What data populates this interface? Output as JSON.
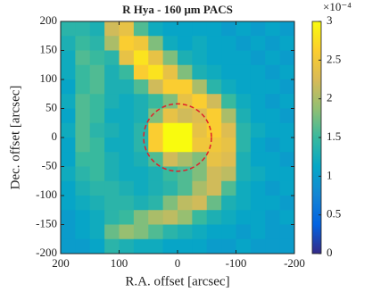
{
  "chart_data": {
    "type": "heatmap",
    "title": "R Hya - 160 μm PACS",
    "xlabel": "R.A. offset [arcsec]",
    "ylabel": "Dec. offset [arcsec]",
    "xlim": [
      200,
      -200
    ],
    "ylim": [
      -200,
      200
    ],
    "xticks": [
      200,
      100,
      0,
      -100,
      -200
    ],
    "yticks": [
      -200,
      -150,
      -100,
      -50,
      0,
      50,
      100,
      150,
      200
    ],
    "clim": [
      0,
      3
    ],
    "cticks": [
      0,
      0.5,
      1,
      1.5,
      2,
      2.5,
      3
    ],
    "colorbar_exponent": "×10⁻⁴",
    "colormap": [
      "#352a87",
      "#0363e1",
      "#1485d4",
      "#06a7c6",
      "#38b99e",
      "#92bf73",
      "#d9ba56",
      "#fcce2e",
      "#f9fb0e"
    ],
    "circle_center": [
      0,
      0
    ],
    "circle_radius": 58,
    "circle_color": "#e0202a",
    "x": [
      187.5,
      162.5,
      137.5,
      112.5,
      87.5,
      62.5,
      37.5,
      12.5,
      -12.5,
      -37.5,
      -62.5,
      -87.5,
      -112.5,
      -137.5,
      -162.5,
      -187.5
    ],
    "y": [
      187.5,
      162.5,
      137.5,
      112.5,
      87.5,
      62.5,
      37.5,
      12.5,
      -12.5,
      -37.5,
      -62.5,
      -87.5,
      -112.5,
      -137.5,
      -162.5,
      -187.5
    ],
    "z": [
      [
        1.4,
        1.4,
        1.3,
        2.2,
        2.4,
        1.6,
        1.2,
        1.1,
        1.1,
        1.1,
        1.1,
        1.0,
        1.1,
        1.0,
        1.1,
        1.0
      ],
      [
        1.3,
        1.5,
        1.4,
        2.0,
        2.6,
        2.5,
        1.8,
        1.2,
        1.1,
        1.2,
        1.1,
        1.1,
        1.0,
        1.1,
        1.0,
        1.1
      ],
      [
        1.2,
        1.6,
        1.5,
        1.4,
        2.4,
        2.8,
        2.4,
        1.8,
        1.3,
        1.2,
        1.1,
        1.1,
        1.1,
        1.0,
        1.1,
        1.0
      ],
      [
        1.2,
        1.5,
        1.6,
        1.3,
        1.5,
        2.6,
        2.8,
        2.4,
        1.8,
        1.3,
        1.2,
        1.1,
        1.1,
        1.1,
        1.0,
        1.1
      ],
      [
        1.1,
        1.5,
        1.6,
        1.3,
        1.3,
        1.6,
        2.2,
        2.6,
        2.6,
        2.0,
        1.4,
        1.2,
        1.1,
        1.1,
        1.1,
        1.0
      ],
      [
        1.2,
        1.6,
        1.5,
        1.3,
        1.2,
        1.3,
        1.5,
        1.8,
        2.4,
        2.6,
        2.2,
        1.5,
        1.2,
        1.1,
        1.0,
        1.1
      ],
      [
        1.1,
        1.6,
        1.5,
        1.2,
        1.2,
        1.3,
        1.8,
        2.4,
        2.2,
        2.3,
        2.6,
        2.0,
        1.3,
        1.1,
        1.1,
        1.0
      ],
      [
        1.2,
        1.6,
        1.4,
        1.3,
        1.2,
        1.4,
        2.6,
        3.0,
        3.0,
        2.4,
        2.6,
        2.3,
        1.4,
        1.2,
        1.1,
        1.1
      ],
      [
        1.1,
        1.6,
        1.5,
        1.2,
        1.2,
        1.4,
        2.6,
        3.0,
        3.0,
        2.5,
        2.5,
        2.4,
        1.4,
        1.1,
        1.0,
        1.1
      ],
      [
        1.1,
        1.5,
        1.5,
        1.3,
        1.2,
        1.3,
        1.6,
        2.2,
        2.0,
        1.8,
        2.4,
        2.3,
        1.3,
        1.1,
        1.1,
        1.0
      ],
      [
        1.2,
        1.4,
        1.5,
        1.3,
        1.2,
        1.2,
        1.3,
        1.5,
        1.6,
        1.8,
        2.2,
        2.1,
        1.3,
        1.2,
        1.1,
        1.1
      ],
      [
        1.1,
        1.3,
        1.4,
        1.4,
        1.3,
        1.2,
        1.3,
        1.4,
        1.6,
        2.0,
        2.2,
        1.6,
        1.2,
        1.1,
        1.0,
        1.1
      ],
      [
        1.1,
        1.2,
        1.3,
        1.4,
        1.4,
        1.3,
        1.4,
        1.8,
        2.1,
        2.2,
        1.7,
        1.3,
        1.2,
        1.1,
        1.1,
        1.0
      ],
      [
        1.0,
        1.1,
        1.2,
        1.4,
        1.5,
        1.8,
        2.0,
        2.1,
        1.9,
        1.5,
        1.3,
        1.2,
        1.1,
        1.1,
        1.0,
        1.1
      ],
      [
        1.0,
        1.1,
        1.2,
        1.7,
        1.9,
        1.8,
        1.6,
        1.4,
        1.3,
        1.2,
        1.1,
        1.1,
        1.0,
        1.1,
        1.0,
        1.0
      ],
      [
        1.0,
        1.0,
        1.1,
        1.4,
        1.3,
        1.2,
        1.2,
        1.1,
        1.1,
        1.1,
        1.0,
        1.0,
        1.1,
        1.0,
        1.0,
        1.0
      ]
    ]
  }
}
